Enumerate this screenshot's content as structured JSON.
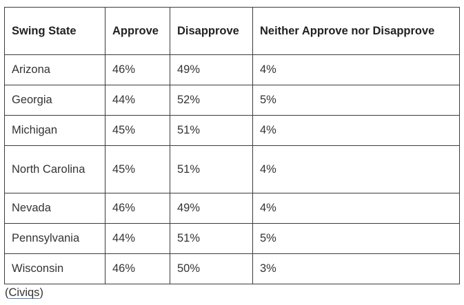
{
  "table": {
    "headers": [
      "Swing State",
      "Approve",
      "Disapprove",
      "Neither Approve nor Disapprove"
    ],
    "rows": [
      [
        "Arizona",
        "46%",
        "49%",
        "4%"
      ],
      [
        "Georgia",
        "44%",
        "52%",
        "5%"
      ],
      [
        "Michigan",
        "45%",
        "51%",
        "4%"
      ],
      [
        "North Carolina",
        "45%",
        "51%",
        "4%"
      ],
      [
        "Nevada",
        "46%",
        "49%",
        "4%"
      ],
      [
        "Pennsylvania",
        "44%",
        "51%",
        "5%"
      ],
      [
        "Wisconsin",
        "46%",
        "50%",
        "3%"
      ]
    ]
  },
  "source": {
    "open": "(",
    "link_text": "Civiqs",
    "close": ")"
  }
}
